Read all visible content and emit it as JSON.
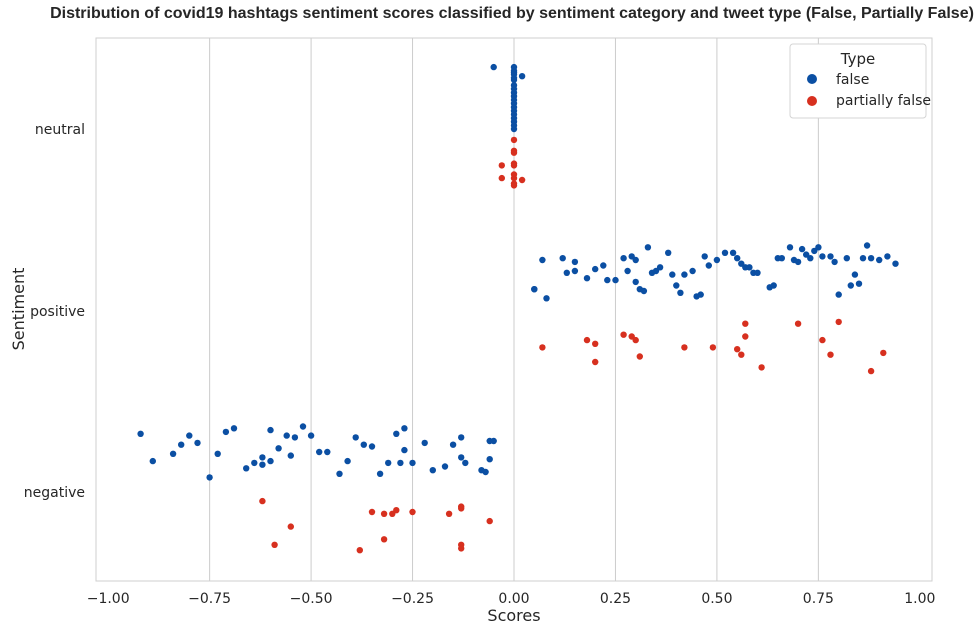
{
  "chart_data": {
    "type": "scatter",
    "title": "Distribution of covid19 hashtags sentiment scores classified by sentiment category and tweet type (False, Partially False)",
    "xlabel": "Scores",
    "ylabel": "Sentiment",
    "xlim": [
      -1.03,
      1.03
    ],
    "xticks": [
      -1.0,
      -0.75,
      -0.5,
      -0.25,
      0.0,
      0.25,
      0.5,
      0.75,
      1.0
    ],
    "xtick_labels": [
      "−1.00",
      "−0.75",
      "−0.50",
      "−0.25",
      "0.00",
      "0.25",
      "0.50",
      "0.75",
      "1.00"
    ],
    "categories": [
      "neutral",
      "positive",
      "negative"
    ],
    "grid": "vertical",
    "legend": {
      "title": "Type",
      "placement": "top-right",
      "entries": [
        {
          "label": "false",
          "color": "#0b4fa3"
        },
        {
          "label": "partially false",
          "color": "#d7301f"
        }
      ]
    },
    "series": [
      {
        "name": "false",
        "color": "#0b4fa3",
        "points": [
          {
            "category": "neutral",
            "values": [
              -0.05,
              0.0,
              0.0,
              0.0,
              0.0,
              0.0,
              0.0,
              0.0,
              0.0,
              0.0,
              0.0,
              0.0,
              0.0,
              0.0,
              0.0,
              0.0,
              0.0,
              0.0,
              0.0,
              0.0,
              0.02
            ],
            "offsets": [
              -0.34,
              -0.34,
              -0.32,
              -0.31,
              -0.3,
              -0.27,
              -0.24,
              -0.22,
              -0.2,
              -0.18,
              -0.16,
              -0.14,
              -0.12,
              -0.1,
              -0.08,
              -0.06,
              -0.04,
              -0.02,
              0.0,
              -0.28,
              -0.29
            ]
          },
          {
            "category": "positive",
            "values": [
              0.05,
              0.05,
              0.07,
              0.08,
              0.12,
              0.13,
              0.15,
              0.15,
              0.18,
              0.2,
              0.22,
              0.23,
              0.25,
              0.27,
              0.28,
              0.29,
              0.3,
              0.3,
              0.31,
              0.32,
              0.33,
              0.34,
              0.35,
              0.36,
              0.38,
              0.39,
              0.4,
              0.41,
              0.42,
              0.44,
              0.45,
              0.46,
              0.47,
              0.48,
              0.5,
              0.52,
              0.54,
              0.55,
              0.56,
              0.57,
              0.58,
              0.59,
              0.6,
              0.63,
              0.64,
              0.65,
              0.66,
              0.68,
              0.69,
              0.7,
              0.71,
              0.72,
              0.73,
              0.74,
              0.75,
              0.76,
              0.78,
              0.79,
              0.8,
              0.82,
              0.83,
              0.84,
              0.85,
              0.86,
              0.87,
              0.88,
              0.9,
              0.92,
              0.94
            ],
            "offsets": [
              -0.12,
              -0.12,
              -0.28,
              -0.07,
              -0.29,
              -0.21,
              -0.22,
              -0.27,
              -0.18,
              -0.23,
              -0.25,
              -0.17,
              -0.17,
              -0.29,
              -0.22,
              -0.3,
              -0.16,
              -0.28,
              -0.12,
              -0.11,
              -0.35,
              -0.21,
              -0.22,
              -0.24,
              -0.32,
              -0.2,
              -0.14,
              -0.1,
              -0.2,
              -0.22,
              -0.08,
              -0.09,
              -0.3,
              -0.25,
              -0.28,
              -0.32,
              -0.32,
              -0.29,
              -0.26,
              -0.24,
              -0.24,
              -0.21,
              -0.21,
              -0.13,
              -0.14,
              -0.29,
              -0.29,
              -0.35,
              -0.28,
              -0.27,
              -0.34,
              -0.31,
              -0.29,
              -0.33,
              -0.35,
              -0.3,
              -0.3,
              -0.27,
              -0.09,
              -0.29,
              -0.14,
              -0.2,
              -0.15,
              -0.29,
              -0.36,
              -0.29,
              -0.28,
              -0.3,
              -0.26
            ]
          },
          {
            "category": "negative",
            "values": [
              -0.92,
              -0.89,
              -0.84,
              -0.82,
              -0.8,
              -0.78,
              -0.75,
              -0.73,
              -0.71,
              -0.69,
              -0.66,
              -0.64,
              -0.62,
              -0.6,
              -0.58,
              -0.56,
              -0.54,
              -0.52,
              -0.5,
              -0.48,
              -0.46,
              -0.43,
              -0.41,
              -0.39,
              -0.37,
              -0.35,
              -0.33,
              -0.31,
              -0.29,
              -0.27,
              -0.25,
              -0.22,
              -0.2,
              -0.17,
              -0.15,
              -0.13,
              -0.12,
              -0.08,
              -0.06,
              -0.05,
              -0.06,
              -0.6,
              -0.62,
              -0.55,
              -0.27,
              -0.28,
              -0.13,
              -0.07
            ],
            "offsets": [
              -0.32,
              -0.17,
              -0.21,
              -0.26,
              -0.31,
              -0.27,
              -0.08,
              -0.21,
              -0.33,
              -0.35,
              -0.13,
              -0.16,
              -0.15,
              -0.34,
              -0.24,
              -0.31,
              -0.3,
              -0.36,
              -0.31,
              -0.22,
              -0.22,
              -0.1,
              -0.17,
              -0.3,
              -0.26,
              -0.25,
              -0.1,
              -0.16,
              -0.32,
              -0.35,
              -0.16,
              -0.27,
              -0.12,
              -0.14,
              -0.26,
              -0.3,
              -0.16,
              -0.12,
              -0.28,
              -0.28,
              -0.18,
              -0.17,
              -0.19,
              -0.2,
              -0.23,
              -0.16,
              -0.19,
              -0.11
            ]
          }
        ]
      },
      {
        "name": "partially false",
        "color": "#d7301f",
        "points": [
          {
            "category": "neutral",
            "values": [
              0.0,
              0.0,
              0.0,
              0.0,
              0.0,
              0.0,
              0.0,
              0.0,
              -0.03,
              -0.03,
              0.02,
              0.0
            ],
            "offsets": [
              0.06,
              0.12,
              0.13,
              0.19,
              0.2,
              0.25,
              0.27,
              0.3,
              0.2,
              0.27,
              0.28,
              0.31
            ]
          },
          {
            "category": "positive",
            "values": [
              0.07,
              0.18,
              0.2,
              0.2,
              0.27,
              0.29,
              0.3,
              0.31,
              0.42,
              0.49,
              0.55,
              0.56,
              0.57,
              0.57,
              0.61,
              0.7,
              0.76,
              0.78,
              0.8,
              0.88,
              0.91
            ],
            "offsets": [
              0.2,
              0.16,
              0.18,
              0.28,
              0.13,
              0.14,
              0.16,
              0.25,
              0.2,
              0.2,
              0.21,
              0.24,
              0.14,
              0.07,
              0.31,
              0.07,
              0.16,
              0.24,
              0.06,
              0.33,
              0.23
            ]
          },
          {
            "category": "negative",
            "values": [
              -0.62,
              -0.55,
              -0.59,
              -0.38,
              -0.35,
              -0.32,
              -0.32,
              -0.3,
              -0.29,
              -0.25,
              -0.16,
              -0.13,
              -0.13,
              -0.13,
              -0.13,
              -0.06
            ],
            "offsets": [
              0.05,
              0.19,
              0.29,
              0.32,
              0.11,
              0.12,
              0.26,
              0.12,
              0.1,
              0.11,
              0.12,
              0.08,
              0.09,
              0.29,
              0.31,
              0.16
            ]
          }
        ]
      }
    ]
  }
}
